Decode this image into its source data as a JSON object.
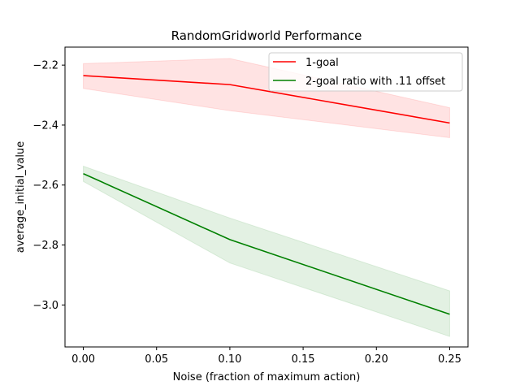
{
  "chart_data": {
    "type": "line",
    "title": "RandomGridworld Performance",
    "xlabel": "Noise (fraction of maximum action)",
    "ylabel": "average_initial_value",
    "x": [
      0.0,
      0.1,
      0.25
    ],
    "xlim": [
      -0.0125,
      0.2625
    ],
    "ylim": [
      -3.14,
      -2.14
    ],
    "xticks": [
      0.0,
      0.05,
      0.1,
      0.15,
      0.2,
      0.25
    ],
    "xtick_labels": [
      "0.00",
      "0.05",
      "0.10",
      "0.15",
      "0.20",
      "0.25"
    ],
    "yticks": [
      -3.0,
      -2.8,
      -2.6,
      -2.4,
      -2.2
    ],
    "ytick_labels": [
      "−3.0",
      "−2.8",
      "−2.6",
      "−2.4",
      "−2.2"
    ],
    "grid": false,
    "legend_position": "upper right",
    "series": [
      {
        "name": "1-goal",
        "color": "#ff0000",
        "band_color": "#ff0000",
        "values": [
          -2.235,
          -2.265,
          -2.393
        ],
        "lower": [
          -2.278,
          -2.352,
          -2.442
        ],
        "upper": [
          -2.195,
          -2.178,
          -2.342
        ]
      },
      {
        "name": "2-goal ratio with .11 offset",
        "color": "#008000",
        "band_color": "#008000",
        "values": [
          -2.562,
          -2.782,
          -3.031
        ],
        "lower": [
          -2.588,
          -2.86,
          -3.105
        ],
        "upper": [
          -2.537,
          -2.71,
          -2.953
        ]
      }
    ]
  }
}
